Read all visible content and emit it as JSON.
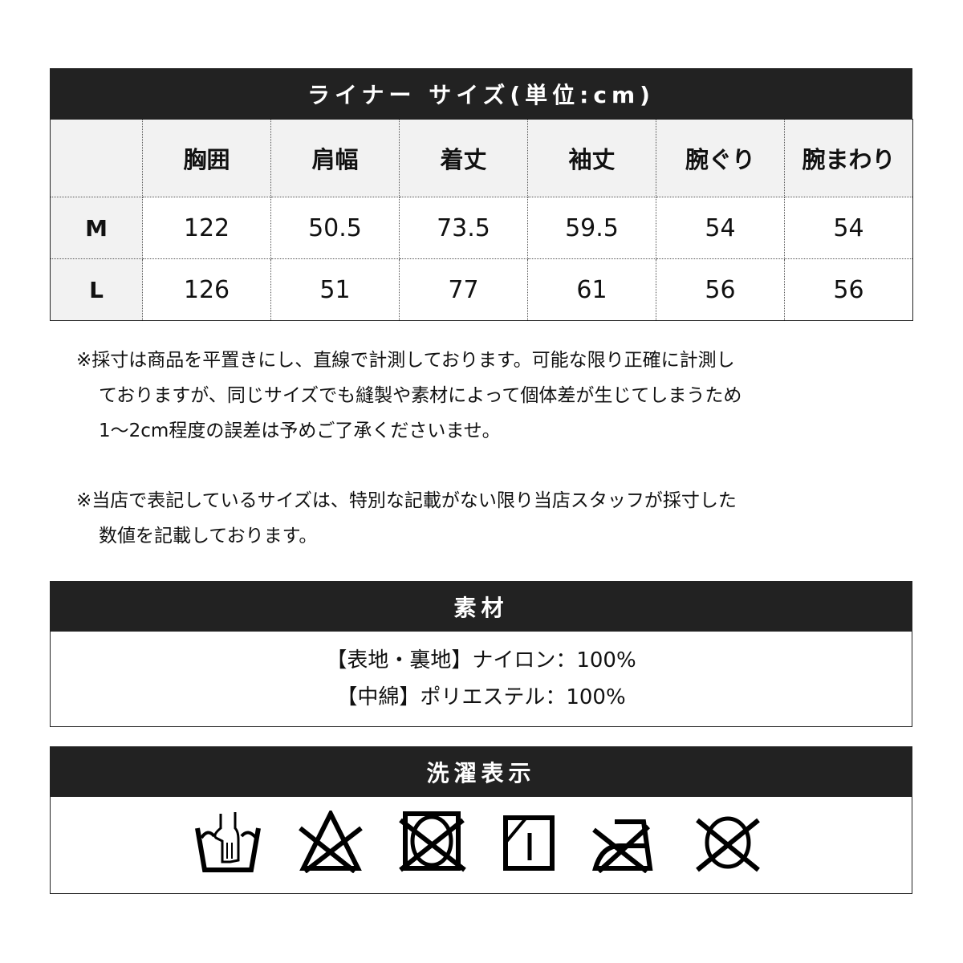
{
  "size_table": {
    "title": "ライナー サイズ(単位:cm)",
    "columns": [
      "胸囲",
      "肩幅",
      "着丈",
      "袖丈",
      "腕ぐり",
      "腕まわり"
    ],
    "rows": [
      {
        "size": "M",
        "values": [
          "122",
          "50.5",
          "73.5",
          "59.5",
          "54",
          "54"
        ]
      },
      {
        "size": "L",
        "values": [
          "126",
          "51",
          "77",
          "61",
          "56",
          "56"
        ]
      }
    ]
  },
  "notes": [
    [
      "※採寸は商品を平置きにし、直線で計測しております。可能な限り正確に計測し",
      "ておりますが、同じサイズでも縫製や素材によって個体差が生じてしまうため",
      "1〜2cm程度の誤差は予めご了承くださいませ。"
    ],
    [
      "※当店で表記しているサイズは、特別な記載がない限り当店スタッフが採寸した",
      "数値を記載しております。"
    ]
  ],
  "material": {
    "title": "素材",
    "lines": [
      "【表地・裏地】ナイロン：100%",
      "【中綿】ポリエステル：100%"
    ]
  },
  "laundry": {
    "title": "洗濯表示",
    "icons": [
      "hand-wash-icon",
      "no-bleach-icon",
      "no-tumble-dry-icon",
      "line-dry-shade-icon",
      "no-iron-icon",
      "no-dry-clean-icon"
    ]
  }
}
